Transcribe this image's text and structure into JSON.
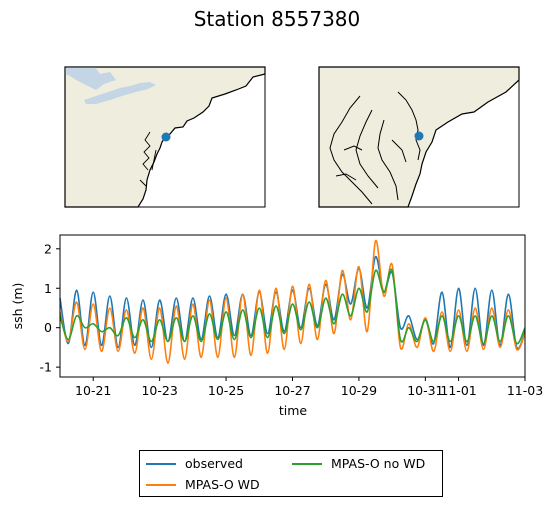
{
  "figure": {
    "title": "Station 8557380",
    "land_color": "#efedde",
    "lake_color": "#c4d5e6",
    "station_color": "#1f77b4"
  },
  "chart_data": {
    "type": "line",
    "title": "",
    "xlabel": "time",
    "ylabel": "ssh (m)",
    "xlim": [
      "10-20",
      "11-03"
    ],
    "ylim": [
      -1.25,
      2.35
    ],
    "yticks": [
      -1,
      0,
      1,
      2
    ],
    "xtick_labels": [
      "10-21",
      "10-23",
      "10-25",
      "10-27",
      "10-29",
      "10-31",
      "11-01",
      "11-03"
    ],
    "grid": false,
    "legend_position": "bottom-center",
    "series": [
      {
        "name": "observed",
        "color": "#1f77b4",
        "x": [
          "10-20 00:00",
          "10-20 06:00",
          "10-20 12:00",
          "10-20 18:00",
          "10-21 00:00",
          "10-21 06:00",
          "10-21 12:00",
          "10-21 18:00",
          "10-22 00:00",
          "10-22 06:00",
          "10-22 12:00",
          "10-22 18:00",
          "10-23 00:00",
          "10-23 06:00",
          "10-23 12:00",
          "10-23 18:00",
          "10-24 00:00",
          "10-24 06:00",
          "10-24 12:00",
          "10-24 18:00",
          "10-25 00:00",
          "10-25 06:00",
          "10-25 12:00",
          "10-25 18:00",
          "10-26 00:00",
          "10-26 06:00",
          "10-26 12:00",
          "10-26 18:00",
          "10-27 00:00",
          "10-27 06:00",
          "10-27 12:00",
          "10-27 18:00",
          "10-28 00:00",
          "10-28 06:00",
          "10-28 12:00",
          "10-28 18:00",
          "10-29 00:00",
          "10-29 06:00",
          "10-29 12:00",
          "10-29 18:00",
          "10-30 00:00",
          "10-30 06:00",
          "10-30 12:00",
          "10-30 18:00",
          "10-31 00:00",
          "10-31 06:00",
          "10-31 12:00",
          "10-31 18:00",
          "11-01 00:00",
          "11-01 06:00",
          "11-01 12:00",
          "11-01 18:00",
          "11-02 00:00",
          "11-02 06:00",
          "11-02 12:00",
          "11-02 18:00",
          "11-03 00:00"
        ],
        "values": [
          0.75,
          -0.4,
          0.95,
          -0.45,
          0.9,
          -0.45,
          0.8,
          -0.5,
          0.75,
          -0.45,
          0.7,
          -0.5,
          0.7,
          -0.35,
          0.75,
          -0.35,
          0.75,
          -0.3,
          0.8,
          -0.25,
          0.85,
          -0.2,
          0.85,
          -0.2,
          0.9,
          -0.15,
          0.9,
          -0.1,
          0.95,
          0.0,
          1.0,
          0.05,
          1.1,
          0.2,
          1.35,
          0.6,
          1.5,
          0.5,
          1.8,
          0.9,
          1.4,
          0.0,
          0.3,
          -0.3,
          0.2,
          -0.4,
          0.9,
          -0.5,
          1.0,
          -0.45,
          1.0,
          -0.45,
          0.95,
          -0.45,
          0.85,
          -0.5,
          -0.1
        ]
      },
      {
        "name": "MPAS-O WD",
        "color": "#ff7f0e",
        "x": [
          "10-20 00:00",
          "10-20 06:00",
          "10-20 12:00",
          "10-20 18:00",
          "10-21 00:00",
          "10-21 06:00",
          "10-21 12:00",
          "10-21 18:00",
          "10-22 00:00",
          "10-22 06:00",
          "10-22 12:00",
          "10-22 18:00",
          "10-23 00:00",
          "10-23 06:00",
          "10-23 12:00",
          "10-23 18:00",
          "10-24 00:00",
          "10-24 06:00",
          "10-24 12:00",
          "10-24 18:00",
          "10-25 00:00",
          "10-25 06:00",
          "10-25 12:00",
          "10-25 18:00",
          "10-26 00:00",
          "10-26 06:00",
          "10-26 12:00",
          "10-26 18:00",
          "10-27 00:00",
          "10-27 06:00",
          "10-27 12:00",
          "10-27 18:00",
          "10-28 00:00",
          "10-28 06:00",
          "10-28 12:00",
          "10-28 18:00",
          "10-29 00:00",
          "10-29 06:00",
          "10-29 12:00",
          "10-29 18:00",
          "10-30 00:00",
          "10-30 06:00",
          "10-30 12:00",
          "10-30 18:00",
          "10-31 00:00",
          "10-31 06:00",
          "10-31 12:00",
          "10-31 18:00",
          "11-01 00:00",
          "11-01 06:00",
          "11-01 12:00",
          "11-01 18:00",
          "11-02 00:00",
          "11-02 06:00",
          "11-02 12:00",
          "11-02 18:00",
          "11-03 00:00"
        ],
        "values": [
          0.4,
          -0.35,
          0.65,
          -0.55,
          0.6,
          -0.6,
          0.5,
          -0.6,
          0.45,
          -0.65,
          0.5,
          -0.8,
          0.5,
          -0.9,
          0.55,
          -0.8,
          0.6,
          -0.75,
          0.7,
          -0.75,
          0.75,
          -0.75,
          0.85,
          -0.7,
          0.95,
          -0.65,
          1.0,
          -0.55,
          1.05,
          -0.4,
          1.1,
          -0.3,
          1.2,
          -0.15,
          1.45,
          0.2,
          1.55,
          -0.1,
          2.2,
          0.8,
          1.6,
          -0.5,
          0.1,
          -0.5,
          0.25,
          -0.6,
          0.4,
          -0.6,
          0.45,
          -0.6,
          0.5,
          -0.55,
          0.5,
          -0.5,
          0.45,
          -0.55,
          -0.15
        ]
      },
      {
        "name": "MPAS-O no WD",
        "color": "#2ca02c",
        "x": [
          "10-20 00:00",
          "10-20 06:00",
          "10-20 12:00",
          "10-20 18:00",
          "10-21 00:00",
          "10-21 06:00",
          "10-21 12:00",
          "10-21 18:00",
          "10-22 00:00",
          "10-22 06:00",
          "10-22 12:00",
          "10-22 18:00",
          "10-23 00:00",
          "10-23 06:00",
          "10-23 12:00",
          "10-23 18:00",
          "10-24 00:00",
          "10-24 06:00",
          "10-24 12:00",
          "10-24 18:00",
          "10-25 00:00",
          "10-25 06:00",
          "10-25 12:00",
          "10-25 18:00",
          "10-26 00:00",
          "10-26 06:00",
          "10-26 12:00",
          "10-26 18:00",
          "10-27 00:00",
          "10-27 06:00",
          "10-27 12:00",
          "10-27 18:00",
          "10-28 00:00",
          "10-28 06:00",
          "10-28 12:00",
          "10-28 18:00",
          "10-29 00:00",
          "10-29 06:00",
          "10-29 12:00",
          "10-29 18:00",
          "10-30 00:00",
          "10-30 06:00",
          "10-30 12:00",
          "10-30 18:00",
          "10-31 00:00",
          "10-31 06:00",
          "10-31 12:00",
          "10-31 18:00",
          "11-01 00:00",
          "11-01 06:00",
          "11-01 12:00",
          "11-01 18:00",
          "11-02 00:00",
          "11-02 06:00",
          "11-02 12:00",
          "11-02 18:00",
          "11-03 00:00"
        ],
        "values": [
          0.3,
          -0.3,
          0.3,
          0.0,
          0.1,
          -0.1,
          0.0,
          -0.2,
          0.25,
          -0.25,
          0.2,
          -0.35,
          0.2,
          -0.35,
          0.25,
          -0.35,
          0.3,
          -0.35,
          0.35,
          -0.3,
          0.4,
          -0.3,
          0.45,
          -0.25,
          0.5,
          -0.25,
          0.55,
          -0.15,
          0.6,
          -0.05,
          0.65,
          0.0,
          0.75,
          0.1,
          0.85,
          0.3,
          1.0,
          0.4,
          1.45,
          0.9,
          1.45,
          -0.3,
          0.0,
          -0.35,
          0.2,
          -0.35,
          0.3,
          -0.35,
          0.3,
          -0.35,
          0.3,
          -0.4,
          0.3,
          -0.35,
          0.3,
          -0.4,
          0.0
        ]
      }
    ]
  }
}
